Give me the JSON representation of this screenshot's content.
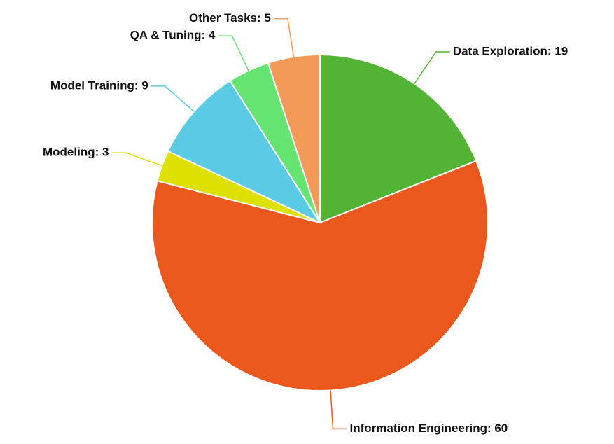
{
  "chart_data": {
    "type": "pie",
    "values": [
      19,
      60,
      3,
      9,
      4,
      5
    ],
    "value_labels": [
      "Data Exploration: 19",
      "Information Engineering: 60",
      "Modeling: 3",
      "Model Training: 9",
      "QA & Tuning: 4",
      "Other Tasks: 5"
    ],
    "colors": [
      "#52b335",
      "#eb581e",
      "#dde000",
      "#5bcbe3",
      "#66e472",
      "#f39a59"
    ]
  }
}
